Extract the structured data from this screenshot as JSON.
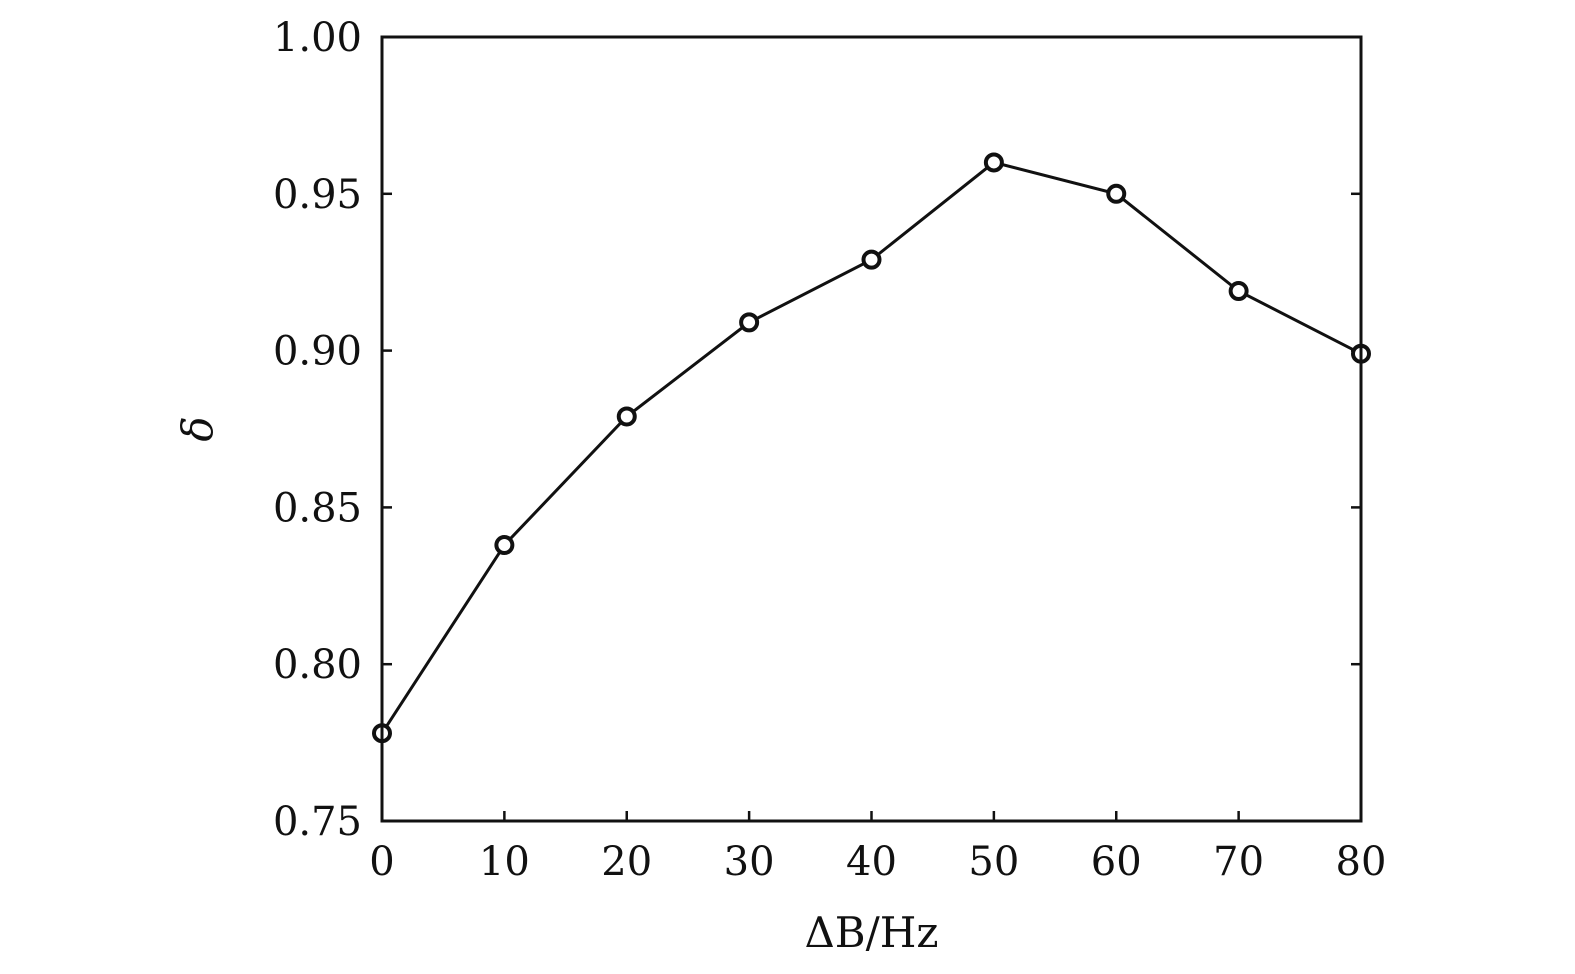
{
  "chart_data": {
    "type": "line",
    "title": "",
    "xlabel": "ΔB/Hz",
    "ylabel": "δ",
    "xlim": [
      0,
      80
    ],
    "ylim": [
      0.75,
      1.0
    ],
    "x_ticks": [
      "0",
      "10",
      "20",
      "30",
      "40",
      "50",
      "60",
      "70",
      "80"
    ],
    "y_ticks": [
      "0.75",
      "0.80",
      "0.85",
      "0.90",
      "0.95",
      "1.00"
    ],
    "grid": false,
    "legend": "none",
    "marker": "open-circle",
    "line_color": "#111111",
    "series": [
      {
        "x": [
          0,
          10,
          20,
          30,
          40,
          50,
          60,
          70,
          80
        ],
        "values": [
          0.778,
          0.838,
          0.879,
          0.909,
          0.929,
          0.96,
          0.95,
          0.919,
          0.899
        ]
      }
    ]
  }
}
